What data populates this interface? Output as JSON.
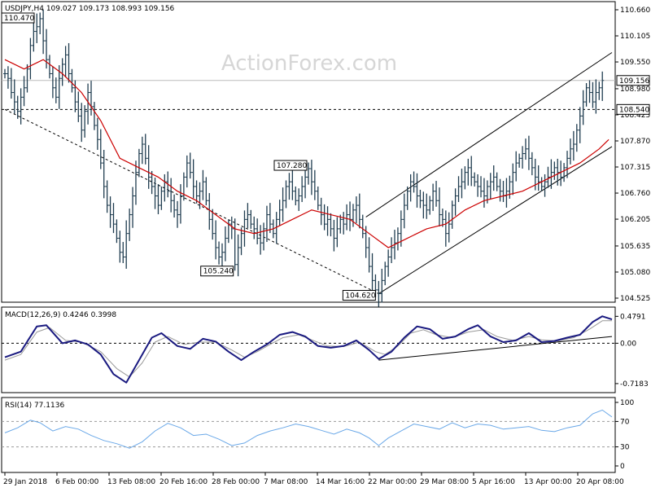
{
  "chart_data": [
    {
      "type": "candlestick",
      "title": "USDJPY,H4  109.027 109.173 108.993 109.156",
      "watermark": "ActionForex.com",
      "ylim": [
        104.525,
        110.66
      ],
      "y_ticks": [
        "110.660",
        "110.105",
        "109.550",
        "108.980",
        "108.425",
        "107.870",
        "107.315",
        "106.760",
        "106.205",
        "105.635",
        "105.080",
        "104.525"
      ],
      "x_tick_labels": [
        "29 Jan 2018",
        "6 Feb 00:00",
        "13 Feb 08:00",
        "20 Feb 16:00",
        "28 Feb 00:00",
        "7 Mar 08:00",
        "14 Mar 16:00",
        "22 Mar 00:00",
        "29 Mar 08:00",
        "5 Apr 16:00",
        "13 Apr 00:00",
        "20 Apr 08:00"
      ],
      "current_price": {
        "value": 109.156,
        "label": "109.156",
        "color": "#000000"
      },
      "level_line": {
        "value": 108.54,
        "label": "108.540",
        "style": "dashed"
      },
      "annotations": [
        {
          "label": "110.470",
          "bar": 11,
          "value": 110.47
        },
        {
          "label": "107.280",
          "bar": 95,
          "value": 107.28
        },
        {
          "label": "105.240",
          "bar": 72,
          "value": 105.24
        },
        {
          "label": "104.620",
          "bar": 117,
          "value": 104.62
        }
      ],
      "trend_lines": [
        {
          "from": {
            "bar": 0,
            "value": 108.54
          },
          "to": {
            "bar": 117,
            "value": 104.62
          },
          "style": "dashed"
        },
        {
          "from": {
            "bar": 117,
            "value": 104.62
          },
          "to": {
            "bar": 190,
            "value": 107.75
          },
          "style": "solid"
        },
        {
          "from": {
            "bar": 113,
            "value": 106.25
          },
          "to": {
            "bar": 190,
            "value": 109.75
          },
          "style": "solid"
        }
      ],
      "series_color": "#1f3c4f",
      "moving_average_color": "#cc0000",
      "close": [
        109.3,
        109.2,
        108.9,
        108.7,
        108.5,
        108.8,
        109.0,
        109.4,
        109.9,
        110.2,
        110.3,
        110.47,
        110.0,
        109.6,
        109.3,
        109.0,
        108.8,
        109.2,
        109.5,
        109.7,
        109.3,
        109.0,
        108.7,
        108.4,
        108.1,
        108.5,
        108.9,
        108.6,
        108.2,
        107.9,
        107.4,
        106.9,
        106.5,
        106.3,
        106.1,
        105.8,
        105.5,
        105.4,
        105.9,
        106.3,
        106.7,
        107.2,
        107.6,
        107.8,
        107.5,
        107.1,
        106.9,
        106.7,
        106.5,
        106.8,
        107.0,
        106.8,
        106.6,
        106.4,
        106.3,
        106.7,
        107.1,
        107.4,
        107.2,
        106.9,
        106.7,
        106.8,
        107.0,
        106.6,
        106.2,
        105.9,
        105.6,
        105.4,
        105.5,
        105.8,
        106.1,
        106.0,
        105.24,
        105.6,
        105.9,
        106.2,
        106.3,
        106.1,
        106.0,
        105.8,
        105.7,
        106.0,
        106.3,
        106.1,
        105.9,
        106.2,
        106.4,
        106.6,
        106.9,
        107.0,
        106.8,
        106.6,
        106.7,
        106.9,
        107.1,
        107.28,
        107.0,
        106.8,
        106.5,
        106.3,
        106.1,
        106.2,
        106.0,
        105.8,
        106.0,
        106.2,
        106.1,
        106.3,
        106.2,
        106.4,
        106.5,
        106.2,
        105.9,
        105.6,
        105.2,
        104.9,
        104.7,
        104.62,
        104.9,
        105.2,
        105.4,
        105.6,
        105.7,
        105.9,
        106.2,
        106.5,
        106.8,
        107.0,
        106.9,
        106.7,
        106.6,
        106.5,
        106.4,
        106.6,
        106.8,
        106.6,
        106.3,
        106.2,
        105.9,
        106.1,
        106.5,
        106.7,
        106.9,
        107.0,
        107.2,
        107.3,
        107.1,
        107.0,
        106.9,
        106.8,
        106.7,
        106.9,
        107.0,
        107.1,
        106.9,
        106.8,
        106.7,
        106.8,
        107.0,
        107.2,
        107.4,
        107.5,
        107.6,
        107.7,
        107.5,
        107.3,
        107.1,
        107.0,
        106.9,
        107.0,
        107.1,
        107.2,
        107.3,
        107.2,
        107.1,
        107.3,
        107.5,
        107.7,
        107.8,
        108.1,
        108.4,
        108.7,
        109.0,
        108.9,
        108.7,
        108.9,
        109.0,
        109.156
      ],
      "ma_points": [
        [
          0,
          109.6
        ],
        [
          6,
          109.4
        ],
        [
          12,
          109.6
        ],
        [
          18,
          109.3
        ],
        [
          24,
          108.9
        ],
        [
          30,
          108.3
        ],
        [
          36,
          107.5
        ],
        [
          42,
          107.3
        ],
        [
          48,
          107.1
        ],
        [
          54,
          106.8
        ],
        [
          60,
          106.6
        ],
        [
          66,
          106.3
        ],
        [
          72,
          106.0
        ],
        [
          78,
          105.9
        ],
        [
          84,
          106.0
        ],
        [
          90,
          106.2
        ],
        [
          96,
          106.4
        ],
        [
          102,
          106.3
        ],
        [
          108,
          106.2
        ],
        [
          114,
          105.9
        ],
        [
          120,
          105.6
        ],
        [
          126,
          105.8
        ],
        [
          132,
          106.0
        ],
        [
          138,
          106.1
        ],
        [
          144,
          106.4
        ],
        [
          150,
          106.6
        ],
        [
          156,
          106.7
        ],
        [
          162,
          106.8
        ],
        [
          168,
          107.0
        ],
        [
          174,
          107.2
        ],
        [
          180,
          107.4
        ],
        [
          186,
          107.7
        ],
        [
          189,
          107.9
        ]
      ],
      "bar_count": 191
    },
    {
      "type": "line",
      "title": "MACD(12,26,9) 0.4246 0.3998",
      "ylim": [
        -0.85,
        0.6
      ],
      "y_ticks": [
        "0.4791",
        "0.00",
        "-0.7183"
      ],
      "zero_line": {
        "value": 0,
        "style": "dashed"
      },
      "trend_line": {
        "from": {
          "bar": 117,
          "value": -0.3
        },
        "to": {
          "bar": 190,
          "value": 0.12
        }
      },
      "series": [
        {
          "name": "MACD",
          "color": "#1a1a80",
          "points": [
            [
              0,
              -0.25
            ],
            [
              5,
              -0.15
            ],
            [
              10,
              0.3
            ],
            [
              13,
              0.32
            ],
            [
              18,
              0.0
            ],
            [
              22,
              0.05
            ],
            [
              26,
              -0.02
            ],
            [
              30,
              -0.2
            ],
            [
              34,
              -0.55
            ],
            [
              38,
              -0.7
            ],
            [
              42,
              -0.3
            ],
            [
              46,
              0.1
            ],
            [
              49,
              0.18
            ],
            [
              54,
              -0.05
            ],
            [
              58,
              -0.1
            ],
            [
              62,
              0.08
            ],
            [
              66,
              0.03
            ],
            [
              70,
              -0.15
            ],
            [
              74,
              -0.3
            ],
            [
              78,
              -0.15
            ],
            [
              82,
              -0.02
            ],
            [
              86,
              0.15
            ],
            [
              90,
              0.2
            ],
            [
              94,
              0.12
            ],
            [
              98,
              -0.05
            ],
            [
              102,
              -0.08
            ],
            [
              106,
              -0.05
            ],
            [
              110,
              0.05
            ],
            [
              114,
              -0.12
            ],
            [
              117,
              -0.28
            ],
            [
              121,
              -0.15
            ],
            [
              125,
              0.1
            ],
            [
              129,
              0.3
            ],
            [
              133,
              0.25
            ],
            [
              137,
              0.08
            ],
            [
              141,
              0.12
            ],
            [
              145,
              0.25
            ],
            [
              148,
              0.32
            ],
            [
              152,
              0.12
            ],
            [
              156,
              0.02
            ],
            [
              160,
              0.05
            ],
            [
              164,
              0.18
            ],
            [
              168,
              0.02
            ],
            [
              172,
              0.04
            ],
            [
              176,
              0.1
            ],
            [
              180,
              0.15
            ],
            [
              184,
              0.38
            ],
            [
              187,
              0.48
            ],
            [
              190,
              0.4246
            ]
          ]
        },
        {
          "name": "Signal",
          "color": "#999999",
          "points": [
            [
              0,
              -0.3
            ],
            [
              5,
              -0.2
            ],
            [
              10,
              0.2
            ],
            [
              14,
              0.28
            ],
            [
              19,
              0.05
            ],
            [
              24,
              0.02
            ],
            [
              30,
              -0.15
            ],
            [
              35,
              -0.45
            ],
            [
              39,
              -0.6
            ],
            [
              43,
              -0.35
            ],
            [
              47,
              0.02
            ],
            [
              51,
              0.12
            ],
            [
              56,
              -0.02
            ],
            [
              61,
              0.02
            ],
            [
              66,
              0.02
            ],
            [
              71,
              -0.12
            ],
            [
              75,
              -0.25
            ],
            [
              79,
              -0.15
            ],
            [
              83,
              -0.02
            ],
            [
              87,
              0.1
            ],
            [
              92,
              0.15
            ],
            [
              96,
              0.06
            ],
            [
              101,
              -0.05
            ],
            [
              106,
              -0.06
            ],
            [
              111,
              0.02
            ],
            [
              116,
              -0.15
            ],
            [
              119,
              -0.2
            ],
            [
              123,
              -0.05
            ],
            [
              127,
              0.18
            ],
            [
              131,
              0.24
            ],
            [
              135,
              0.15
            ],
            [
              140,
              0.1
            ],
            [
              145,
              0.2
            ],
            [
              150,
              0.24
            ],
            [
              154,
              0.12
            ],
            [
              159,
              0.05
            ],
            [
              164,
              0.12
            ],
            [
              168,
              0.06
            ],
            [
              173,
              0.04
            ],
            [
              178,
              0.1
            ],
            [
              183,
              0.25
            ],
            [
              187,
              0.4
            ],
            [
              190,
              0.3998
            ]
          ]
        }
      ]
    },
    {
      "type": "line",
      "title": "RSI(14) 77.1136",
      "ylim": [
        0,
        100
      ],
      "y_ticks": [
        "100",
        "70",
        "30",
        "0"
      ],
      "levels": [
        70,
        30
      ],
      "series": [
        {
          "name": "RSI",
          "color": "#6aa8e8",
          "points": [
            [
              0,
              52
            ],
            [
              4,
              60
            ],
            [
              8,
              72
            ],
            [
              11,
              68
            ],
            [
              15,
              55
            ],
            [
              19,
              62
            ],
            [
              23,
              58
            ],
            [
              27,
              48
            ],
            [
              31,
              40
            ],
            [
              35,
              35
            ],
            [
              39,
              28
            ],
            [
              43,
              38
            ],
            [
              47,
              55
            ],
            [
              51,
              67
            ],
            [
              55,
              60
            ],
            [
              59,
              48
            ],
            [
              63,
              50
            ],
            [
              67,
              42
            ],
            [
              71,
              32
            ],
            [
              75,
              36
            ],
            [
              79,
              48
            ],
            [
              83,
              55
            ],
            [
              87,
              60
            ],
            [
              91,
              66
            ],
            [
              95,
              62
            ],
            [
              99,
              56
            ],
            [
              103,
              50
            ],
            [
              107,
              58
            ],
            [
              111,
              52
            ],
            [
              114,
              44
            ],
            [
              117,
              32
            ],
            [
              120,
              44
            ],
            [
              124,
              55
            ],
            [
              128,
              66
            ],
            [
              132,
              62
            ],
            [
              136,
              58
            ],
            [
              140,
              68
            ],
            [
              144,
              60
            ],
            [
              148,
              66
            ],
            [
              152,
              64
            ],
            [
              156,
              58
            ],
            [
              160,
              60
            ],
            [
              164,
              62
            ],
            [
              168,
              56
            ],
            [
              172,
              54
            ],
            [
              176,
              60
            ],
            [
              180,
              64
            ],
            [
              184,
              82
            ],
            [
              187,
              88
            ],
            [
              190,
              77
            ]
          ]
        }
      ]
    }
  ]
}
